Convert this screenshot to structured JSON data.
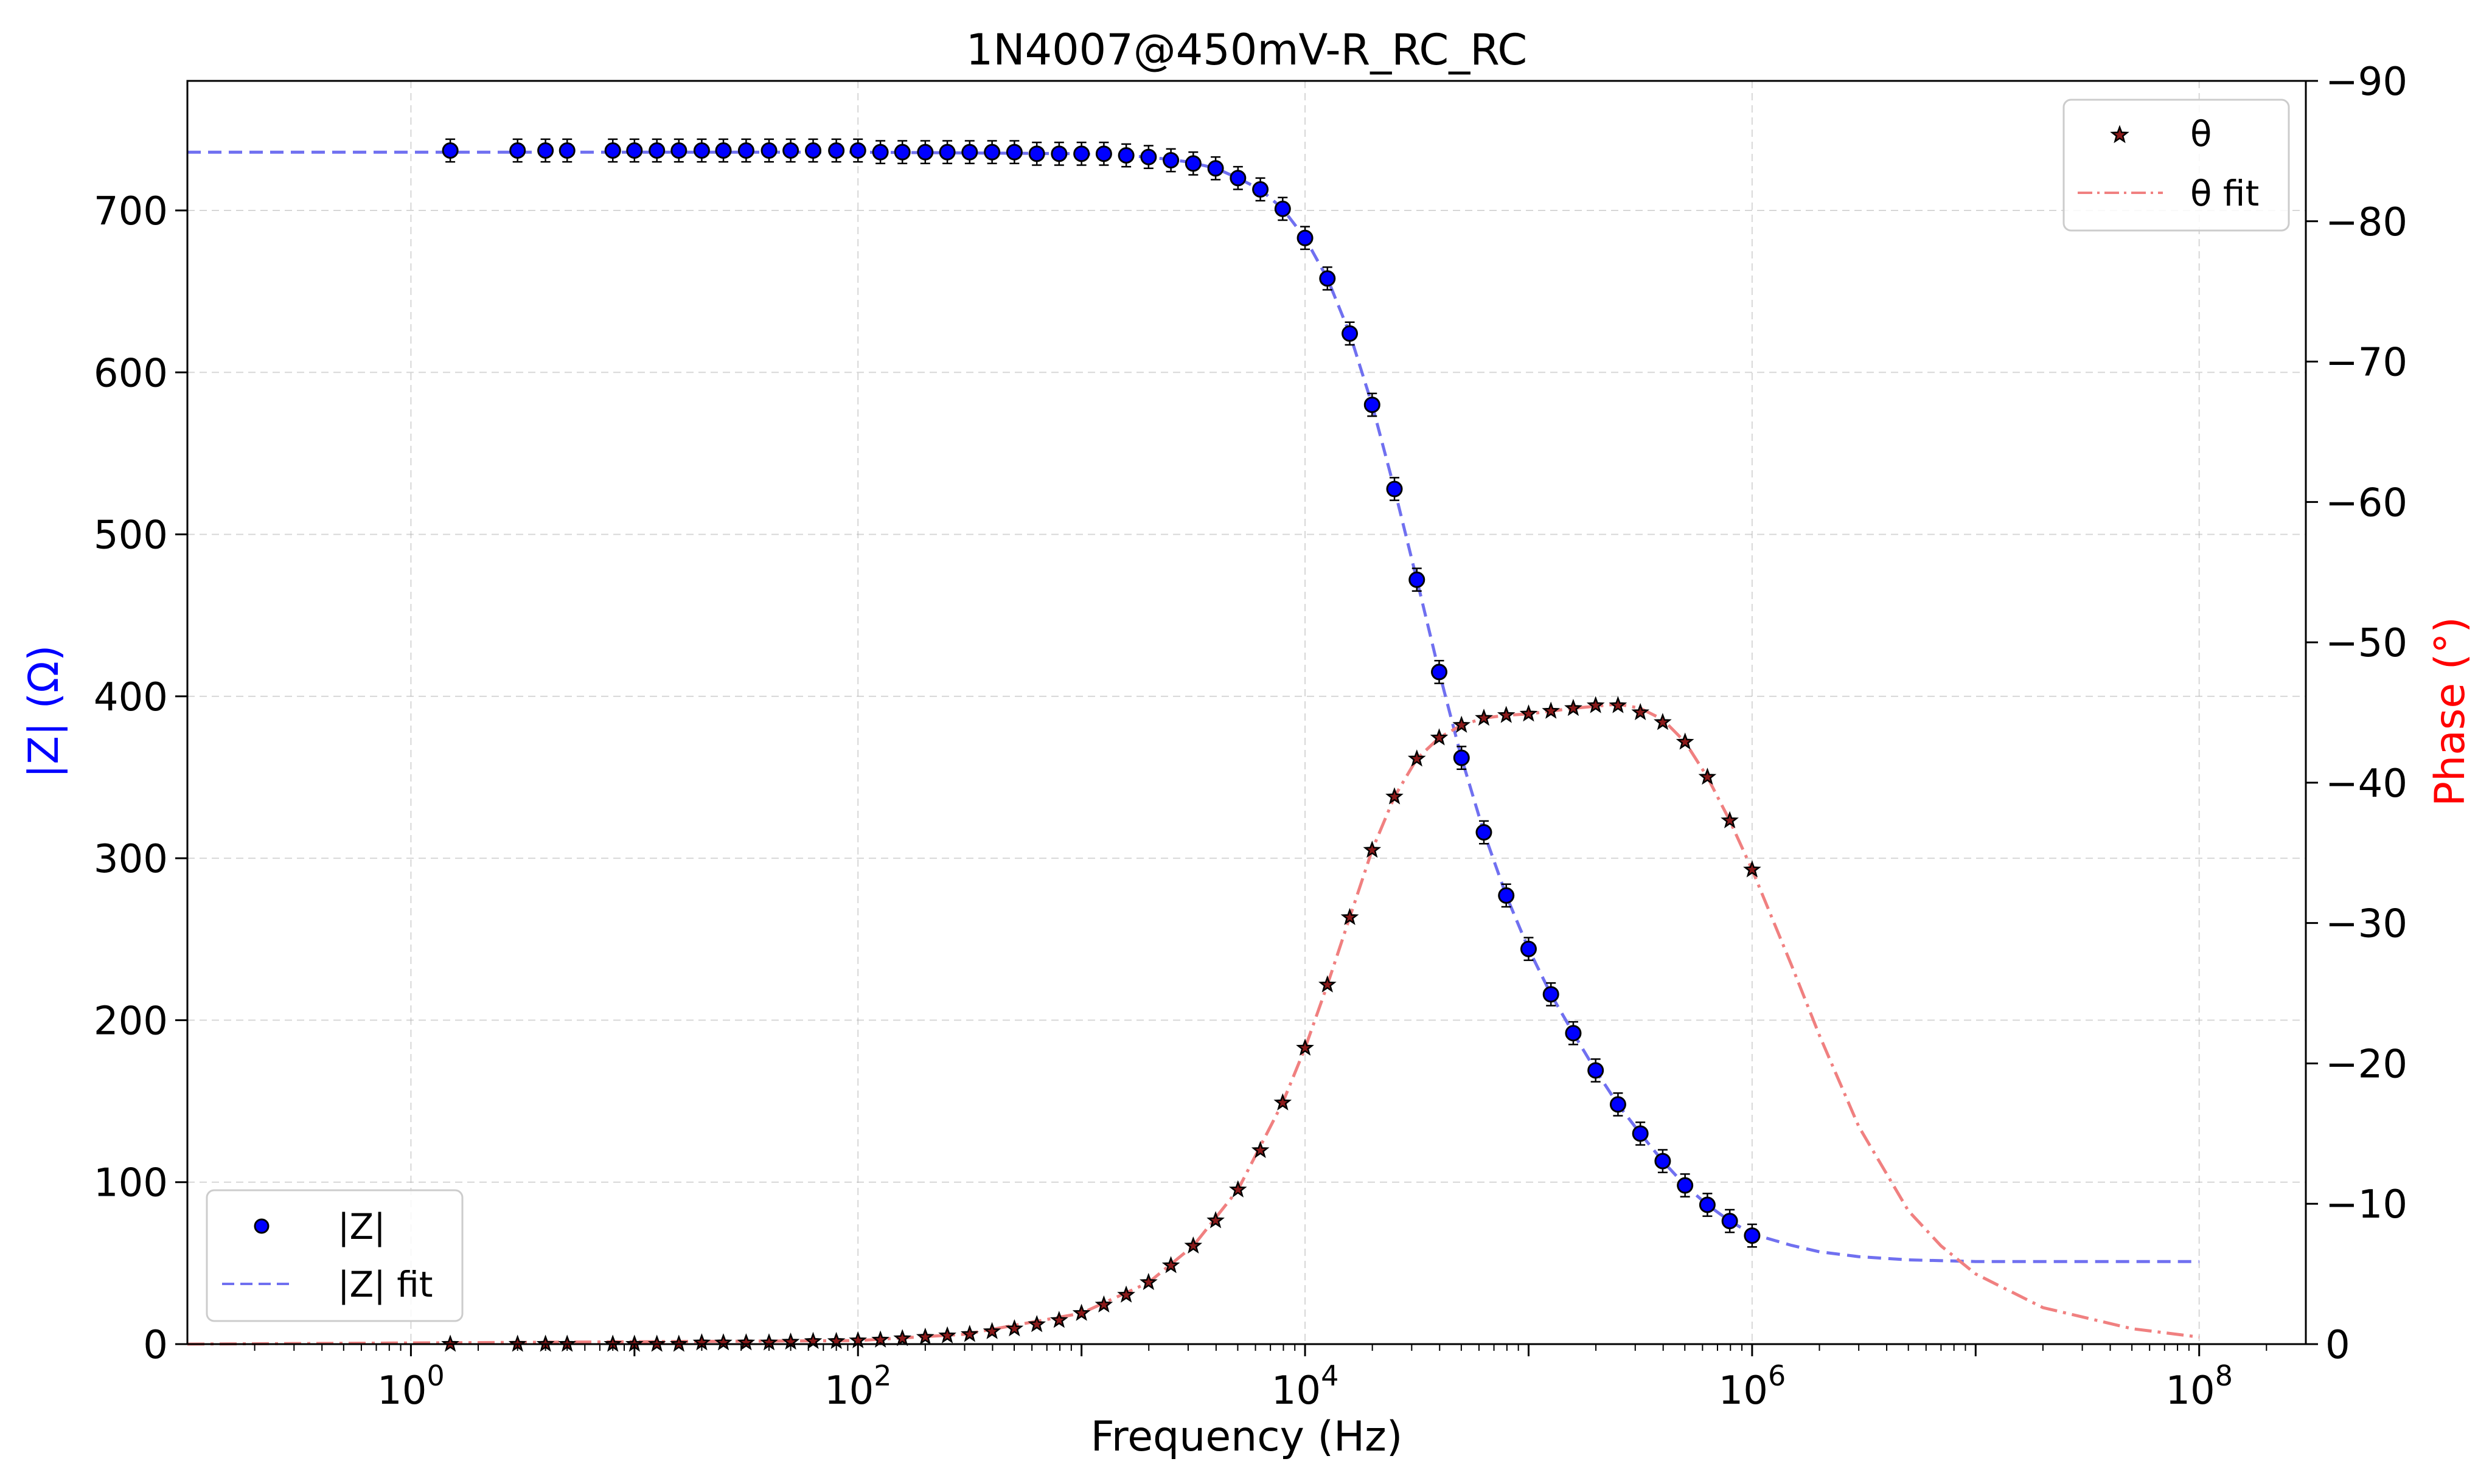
{
  "chart_data": {
    "type": "scatter",
    "title": "1N4007@450mV-R_RC_RC",
    "xlabel": "Frequency (Hz)",
    "ylabel_left": "|Z| (Ω)",
    "ylabel_right": "Phase (°)",
    "x_scale": "log",
    "xlim": [
      0.1,
      300000000
    ],
    "ylim_left": [
      0,
      780
    ],
    "ylim_right": [
      0,
      -90
    ],
    "x_ticks": [
      1,
      100,
      10000,
      1000000,
      100000000
    ],
    "x_tick_labels": [
      {
        "base": "10",
        "exp": "0"
      },
      {
        "base": "10",
        "exp": "2"
      },
      {
        "base": "10",
        "exp": "4"
      },
      {
        "base": "10",
        "exp": "6"
      },
      {
        "base": "10",
        "exp": "8"
      }
    ],
    "y_left_ticks": [
      0,
      100,
      200,
      300,
      400,
      500,
      600,
      700
    ],
    "y_left_tick_labels": [
      "0",
      "100",
      "200",
      "300",
      "400",
      "500",
      "600",
      "700"
    ],
    "y_right_ticks": [
      0,
      -10,
      -20,
      -30,
      -40,
      -50,
      -60,
      -70,
      -80,
      -90
    ],
    "y_right_tick_labels": [
      "0",
      "−10",
      "−20",
      "−30",
      "−40",
      "−50",
      "−60",
      "−70",
      "−80",
      "−90"
    ],
    "grid": true,
    "legends": [
      {
        "placement": "lower-left",
        "entries": [
          "|Z|",
          "|Z| fit"
        ]
      },
      {
        "placement": "upper-right",
        "entries": [
          "θ",
          "θ fit"
        ]
      }
    ],
    "colors": {
      "z_marker": "#0000ff",
      "z_fit": "#7070f0",
      "theta_marker": "#8b1a1a",
      "theta_fit": "#f08080",
      "left_axis_label": "#0000ff",
      "right_axis_label": "#ff0000"
    },
    "series": [
      {
        "name": "|Z|",
        "axis": "left",
        "marker": "circle",
        "error_bar": 7,
        "points": [
          [
            1.5,
            737
          ],
          [
            3,
            737
          ],
          [
            4,
            737
          ],
          [
            5,
            737
          ],
          [
            8,
            737
          ],
          [
            10,
            737
          ],
          [
            12.6,
            737
          ],
          [
            15.8,
            737
          ],
          [
            20,
            737
          ],
          [
            25,
            737
          ],
          [
            31.6,
            737
          ],
          [
            40,
            737
          ],
          [
            50,
            737
          ],
          [
            63,
            737
          ],
          [
            80,
            737
          ],
          [
            100,
            737
          ],
          [
            126,
            736
          ],
          [
            158,
            736
          ],
          [
            200,
            736
          ],
          [
            251,
            736
          ],
          [
            316,
            736
          ],
          [
            398,
            736
          ],
          [
            501,
            736
          ],
          [
            631,
            735
          ],
          [
            794,
            735
          ],
          [
            1000,
            735
          ],
          [
            1259,
            735
          ],
          [
            1585,
            734
          ],
          [
            1995,
            733
          ],
          [
            2512,
            731
          ],
          [
            3162,
            729
          ],
          [
            3981,
            726
          ],
          [
            5012,
            720
          ],
          [
            6310,
            713
          ],
          [
            7943,
            701
          ],
          [
            10000,
            683
          ],
          [
            12589,
            658
          ],
          [
            15849,
            624
          ],
          [
            19953,
            580
          ],
          [
            25119,
            528
          ],
          [
            31623,
            472
          ],
          [
            39811,
            415
          ],
          [
            50119,
            362
          ],
          [
            63096,
            316
          ],
          [
            79433,
            277
          ],
          [
            100000,
            244
          ],
          [
            125893,
            216
          ],
          [
            158489,
            192
          ],
          [
            199526,
            169
          ],
          [
            251189,
            148
          ],
          [
            316228,
            130
          ],
          [
            398107,
            113
          ],
          [
            501187,
            98
          ],
          [
            630957,
            86
          ],
          [
            794328,
            76
          ],
          [
            1000000,
            67
          ]
        ]
      },
      {
        "name": "|Z| fit",
        "axis": "left",
        "style": "dashed",
        "points": [
          [
            0.1,
            736
          ],
          [
            100,
            736
          ],
          [
            1000,
            735
          ],
          [
            2000,
            733
          ],
          [
            3000,
            730
          ],
          [
            4000,
            726
          ],
          [
            5000,
            720
          ],
          [
            6310,
            713
          ],
          [
            7943,
            701
          ],
          [
            10000,
            683
          ],
          [
            12589,
            658
          ],
          [
            15849,
            624
          ],
          [
            19953,
            580
          ],
          [
            25119,
            528
          ],
          [
            31623,
            472
          ],
          [
            39811,
            415
          ],
          [
            50119,
            362
          ],
          [
            63096,
            316
          ],
          [
            79433,
            277
          ],
          [
            100000,
            244
          ],
          [
            125893,
            216
          ],
          [
            158489,
            192
          ],
          [
            199526,
            169
          ],
          [
            251189,
            148
          ],
          [
            316228,
            130
          ],
          [
            398107,
            113
          ],
          [
            501187,
            98
          ],
          [
            630957,
            86
          ],
          [
            794328,
            76
          ],
          [
            1000000,
            68
          ],
          [
            1500000,
            61
          ],
          [
            2000000,
            57
          ],
          [
            3000000,
            54
          ],
          [
            5000000,
            52
          ],
          [
            10000000,
            51
          ],
          [
            100000000,
            51
          ]
        ]
      },
      {
        "name": "θ",
        "axis": "right",
        "marker": "star",
        "points": [
          [
            1.5,
            0
          ],
          [
            3,
            0
          ],
          [
            4,
            0
          ],
          [
            5,
            0
          ],
          [
            8,
            0
          ],
          [
            10,
            0
          ],
          [
            12.6,
            0
          ],
          [
            15.8,
            0
          ],
          [
            20,
            -0.1
          ],
          [
            25,
            -0.1
          ],
          [
            31.6,
            -0.1
          ],
          [
            40,
            -0.1
          ],
          [
            50,
            -0.15
          ],
          [
            63,
            -0.2
          ],
          [
            80,
            -0.2
          ],
          [
            100,
            -0.25
          ],
          [
            126,
            -0.3
          ],
          [
            158,
            -0.4
          ],
          [
            200,
            -0.5
          ],
          [
            251,
            -0.6
          ],
          [
            316,
            -0.7
          ],
          [
            398,
            -0.9
          ],
          [
            501,
            -1.1
          ],
          [
            631,
            -1.4
          ],
          [
            794,
            -1.7
          ],
          [
            1000,
            -2.2
          ],
          [
            1259,
            -2.8
          ],
          [
            1585,
            -3.5
          ],
          [
            1995,
            -4.4
          ],
          [
            2512,
            -5.6
          ],
          [
            3162,
            -7.0
          ],
          [
            3981,
            -8.8
          ],
          [
            5012,
            -11.0
          ],
          [
            6310,
            -13.8
          ],
          [
            7943,
            -17.2
          ],
          [
            10000,
            -21.1
          ],
          [
            12589,
            -25.6
          ],
          [
            15849,
            -30.4
          ],
          [
            19953,
            -35.2
          ],
          [
            25119,
            -39.0
          ],
          [
            31623,
            -41.7
          ],
          [
            39811,
            -43.2
          ],
          [
            50119,
            -44.1
          ],
          [
            63096,
            -44.6
          ],
          [
            79433,
            -44.8
          ],
          [
            100000,
            -44.9
          ],
          [
            125893,
            -45.1
          ],
          [
            158489,
            -45.3
          ],
          [
            199526,
            -45.5
          ],
          [
            251189,
            -45.5
          ],
          [
            316228,
            -45.0
          ],
          [
            398107,
            -44.3
          ],
          [
            501187,
            -42.9
          ],
          [
            630957,
            -40.4
          ],
          [
            794328,
            -37.3
          ],
          [
            1000000,
            -33.8
          ]
        ]
      },
      {
        "name": "θ fit",
        "axis": "right",
        "style": "dashdot",
        "points": [
          [
            0.1,
            0
          ],
          [
            100,
            -0.25
          ],
          [
            300,
            -0.7
          ],
          [
            1000,
            -2.2
          ],
          [
            2000,
            -4.4
          ],
          [
            3162,
            -7.0
          ],
          [
            5012,
            -11.0
          ],
          [
            7943,
            -17.2
          ],
          [
            10000,
            -21.1
          ],
          [
            12589,
            -25.6
          ],
          [
            15849,
            -30.4
          ],
          [
            19953,
            -35.2
          ],
          [
            25119,
            -39.0
          ],
          [
            31623,
            -41.7
          ],
          [
            39811,
            -43.2
          ],
          [
            50119,
            -44.1
          ],
          [
            63096,
            -44.6
          ],
          [
            79433,
            -44.8
          ],
          [
            100000,
            -44.9
          ],
          [
            158489,
            -45.3
          ],
          [
            251189,
            -45.6
          ],
          [
            316228,
            -45.3
          ],
          [
            398107,
            -44.5
          ],
          [
            501187,
            -42.9
          ],
          [
            630957,
            -40.4
          ],
          [
            794328,
            -37.3
          ],
          [
            1000000,
            -33.8
          ],
          [
            1500000,
            -27
          ],
          [
            2000000,
            -22
          ],
          [
            3000000,
            -15.5
          ],
          [
            5000000,
            -9.5
          ],
          [
            7000000,
            -7
          ],
          [
            10000000,
            -5
          ],
          [
            20000000,
            -2.6
          ],
          [
            50000000,
            -1.1
          ],
          [
            100000000,
            -0.5
          ]
        ]
      }
    ]
  }
}
